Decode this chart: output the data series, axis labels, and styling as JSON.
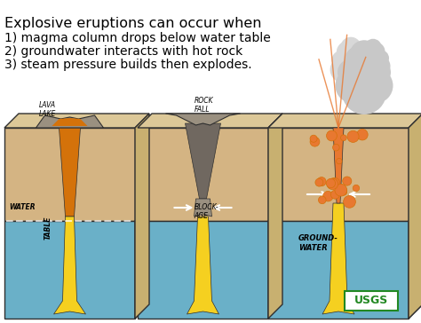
{
  "title_line1": "Explosive eruptions can occur when",
  "point1": "1) magma column drops below water table",
  "point2": "2) groundwater interacts with hot rock",
  "point3": "3) steam pressure builds then explodes.",
  "bg_color": "#ffffff",
  "label_lava_lake": "LAVA\nLAKE",
  "label_table": "TABLE",
  "label_water": "WATER",
  "label_rock_fall": "ROCK\nFALL",
  "label_blockage": "BLOCK-\nAGE",
  "label_groundwater": "GROUND-\nWATER",
  "label_usgs": "USGS",
  "sand_color": "#d4b483",
  "sand_dark": "#c8a96e",
  "water_color": "#6ab0c8",
  "water_light": "#8ec8d8",
  "lava_color": "#d4720a",
  "lava_bright": "#f0a020",
  "lava_yellow": "#f5d020",
  "magma_orange": "#e87820",
  "rock_gray": "#9a9080",
  "rock_dark": "#706860",
  "smoke_color": "#c8c8c8",
  "smoke_light": "#d8d8d8",
  "eruption_orange": "#e87830",
  "outline_color": "#303030",
  "wall_color": "#dcc898",
  "wall_side_color": "#c8b070",
  "floor_color": "#e0c890"
}
